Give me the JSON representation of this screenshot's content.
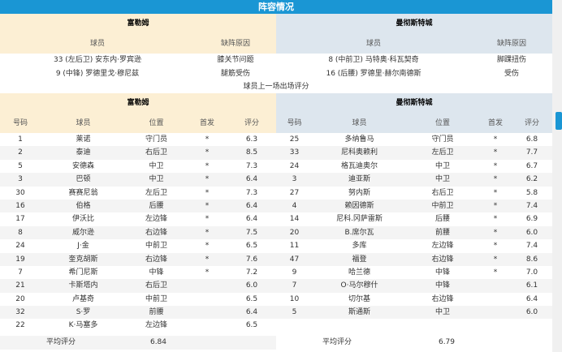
{
  "title": "阵容情况",
  "injuries": {
    "home": {
      "team": "富勒姆",
      "col_player": "球员",
      "col_reason": "缺阵原因",
      "rows": [
        {
          "player": "33 (左后卫) 安东内·罗宾逊",
          "reason": "膝关节问题"
        },
        {
          "player": "9 (中锋) 罗德里戈·穆尼兹",
          "reason": "腿筋受伤"
        }
      ]
    },
    "away": {
      "team": "曼彻斯特城",
      "col_player": "球员",
      "col_reason": "缺阵原因",
      "rows": [
        {
          "player": "8 (中前卫) 马特奥·科瓦契奇",
          "reason": "脚踝扭伤"
        },
        {
          "player": "16 (后腰) 罗德里·赫尔南德斯",
          "reason": "受伤"
        }
      ]
    }
  },
  "ratings_caption": "球员上一场出场评分",
  "columns": [
    "号码",
    "球员",
    "位置",
    "首发",
    "评分"
  ],
  "avg_label": "平均评分",
  "home": {
    "team": "富勒姆",
    "avg": "6.84",
    "players": [
      [
        "1",
        "莱诺",
        "守门员",
        "*",
        "6.3"
      ],
      [
        "2",
        "泰迪",
        "右后卫",
        "*",
        "8.5"
      ],
      [
        "5",
        "安德森",
        "中卫",
        "*",
        "7.3"
      ],
      [
        "3",
        "巴顿",
        "中卫",
        "*",
        "6.4"
      ],
      [
        "30",
        "赛赛尼翁",
        "左后卫",
        "*",
        "7.3"
      ],
      [
        "16",
        "伯格",
        "后腰",
        "*",
        "6.4"
      ],
      [
        "17",
        "伊沃比",
        "左边锋",
        "*",
        "6.4"
      ],
      [
        "8",
        "威尔逊",
        "右边锋",
        "*",
        "7.5"
      ],
      [
        "24",
        "J·金",
        "中前卫",
        "*",
        "6.5"
      ],
      [
        "19",
        "奎克胡斯",
        "右边锋",
        "*",
        "7.6"
      ],
      [
        "7",
        "希门尼斯",
        "中锋",
        "*",
        "7.2"
      ],
      [
        "21",
        "卡斯塔内",
        "右后卫",
        "",
        "6.0"
      ],
      [
        "20",
        "卢基奇",
        "中前卫",
        "",
        "6.5"
      ],
      [
        "32",
        "S·罗",
        "前腰",
        "",
        "6.4"
      ],
      [
        "22",
        "K·马塞多",
        "左边锋",
        "",
        "6.5"
      ]
    ]
  },
  "away": {
    "team": "曼彻斯特城",
    "avg": "6.79",
    "players": [
      [
        "25",
        "多纳鲁马",
        "守门员",
        "*",
        "6.8"
      ],
      [
        "33",
        "尼科奥赖利",
        "左后卫",
        "*",
        "7.7"
      ],
      [
        "24",
        "格瓦迪奥尔",
        "中卫",
        "*",
        "6.7"
      ],
      [
        "3",
        "迪亚斯",
        "中卫",
        "*",
        "6.2"
      ],
      [
        "27",
        "努内斯",
        "右后卫",
        "*",
        "5.8"
      ],
      [
        "4",
        "赖因德斯",
        "中前卫",
        "*",
        "7.4"
      ],
      [
        "14",
        "尼科.冈萨雷斯",
        "后腰",
        "*",
        "6.9"
      ],
      [
        "20",
        "B.席尔瓦",
        "前腰",
        "*",
        "6.0"
      ],
      [
        "11",
        "多库",
        "左边锋",
        "*",
        "7.4"
      ],
      [
        "47",
        "福登",
        "右边锋",
        "*",
        "8.6"
      ],
      [
        "9",
        "哈兰德",
        "中锋",
        "*",
        "7.0"
      ],
      [
        "7",
        "O·马尔穆什",
        "中锋",
        "",
        "6.1"
      ],
      [
        "10",
        "切尔基",
        "右边锋",
        "",
        "6.4"
      ],
      [
        "5",
        "斯通斯",
        "中卫",
        "",
        "6.0"
      ]
    ]
  },
  "colors": {
    "accent": "#1a96d4",
    "home_bg": "#fcefd4",
    "away_bg": "#dde6ee"
  }
}
